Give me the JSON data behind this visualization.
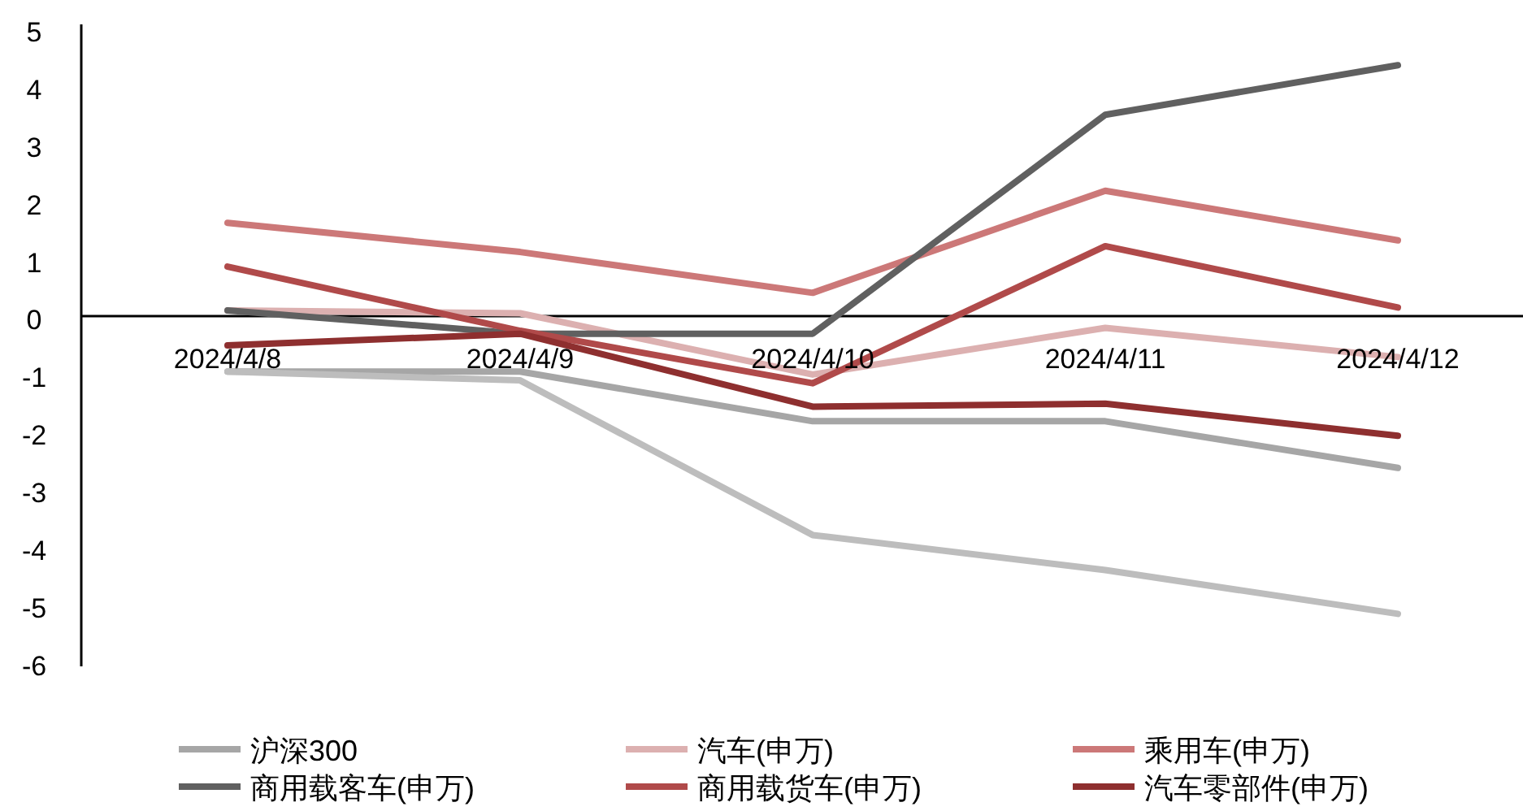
{
  "chart_data": {
    "type": "line",
    "categories": [
      "2024/4/8",
      "2024/4/9",
      "2024/4/10",
      "2024/4/11",
      "2024/4/12"
    ],
    "ylim": [
      -6,
      5
    ],
    "yticks": [
      -6,
      -5,
      -4,
      -3,
      -2,
      -1,
      0,
      1,
      2,
      3,
      4,
      5
    ],
    "grid": false,
    "legend": "bottom",
    "series": [
      {
        "name": "沪深300",
        "color": "#a6a6a6",
        "values": [
          -0.95,
          -0.95,
          -1.8,
          -1.8,
          -2.6
        ]
      },
      {
        "name": "汽车(申万)",
        "color": "#dcb0b0",
        "values": [
          0.1,
          0.05,
          -1.0,
          -0.2,
          -0.7
        ]
      },
      {
        "name": "乘用车(申万)",
        "color": "#cc7878",
        "values": [
          1.6,
          1.1,
          0.4,
          2.15,
          1.3
        ]
      },
      {
        "name": "商用载客车(申万)",
        "color": "#606060",
        "values": [
          0.1,
          -0.3,
          -0.3,
          3.45,
          4.3
        ]
      },
      {
        "name": "商用载货车(申万)",
        "color": "#b04a4a",
        "values": [
          0.85,
          -0.25,
          -1.15,
          1.2,
          0.15
        ]
      },
      {
        "name": "汽车零部件(申万)",
        "color": "#8e2f2f",
        "values": [
          -0.5,
          -0.3,
          -1.55,
          -1.5,
          -2.05
        ]
      },
      {
        "color": "#bdbdbd",
        "values": [
          -0.95,
          -1.1,
          -3.75,
          -4.35,
          -5.1
        ]
      }
    ]
  }
}
